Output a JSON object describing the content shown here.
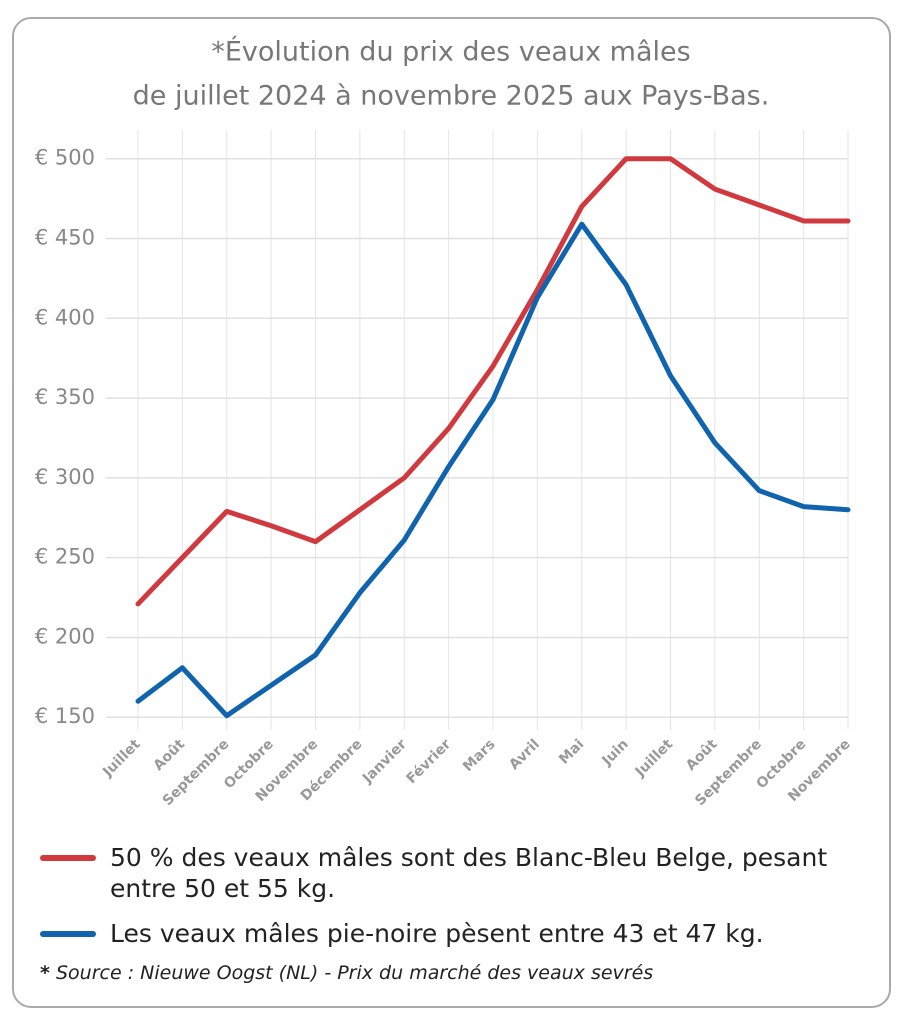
{
  "chart_data": {
    "type": "line",
    "title": "*Évolution du prix des veaux mâles",
    "subtitle": "de juillet 2024 à novembre 2025 aux Pays-Bas.",
    "categories": [
      "Juillet",
      "Août",
      "Septembre",
      "Octobre",
      "Novembre",
      "Décembre",
      "Janvier",
      "Février",
      "Mars",
      "Avril",
      "Mai",
      "Juin",
      "Juillet",
      "Août",
      "Septembre",
      "Octobre",
      "Novembre"
    ],
    "series": [
      {
        "name": "50 % des veaux mâles sont des Blanc-Bleu Belge, pesant entre 50 et 55 kg.",
        "color": "#d0393e",
        "values": [
          221,
          250,
          279,
          270,
          260,
          280,
          300,
          331,
          370,
          418,
          470,
          500,
          500,
          481,
          471,
          461,
          461
        ]
      },
      {
        "name": "Les veaux mâles pie-noire pèsent entre 43 et 47 kg.",
        "color": "#0f64ad",
        "values": [
          160,
          181,
          151,
          170,
          189,
          228,
          261,
          307,
          349,
          413,
          459,
          421,
          364,
          322,
          292,
          282,
          280
        ]
      }
    ],
    "ylim": [
      142,
      518
    ],
    "yticks": [
      {
        "value": 150,
        "label": "€ 150"
      },
      {
        "value": 200,
        "label": "€ 200"
      },
      {
        "value": 250,
        "label": "€ 250"
      },
      {
        "value": 300,
        "label": "€ 300"
      },
      {
        "value": 350,
        "label": "€ 350"
      },
      {
        "value": 400,
        "label": "€ 400"
      },
      {
        "value": 450,
        "label": "€ 450"
      },
      {
        "value": 500,
        "label": "€ 500"
      }
    ],
    "grid": true,
    "note_marker": "*",
    "note": "Source : Nieuwe Oogst (NL) - Prix du marché des veaux sevrés"
  }
}
